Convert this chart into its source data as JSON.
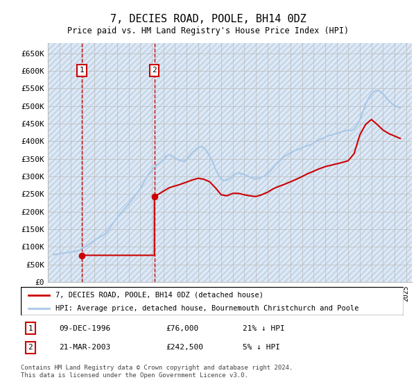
{
  "title": "7, DECIES ROAD, POOLE, BH14 0DZ",
  "subtitle": "Price paid vs. HM Land Registry's House Price Index (HPI)",
  "xmin": 1994.0,
  "xmax": 2025.5,
  "ymin": 0,
  "ymax": 680000,
  "yticks": [
    0,
    50000,
    100000,
    150000,
    200000,
    250000,
    300000,
    350000,
    400000,
    450000,
    500000,
    550000,
    600000,
    650000
  ],
  "ytick_labels": [
    "£0",
    "£50K",
    "£100K",
    "£150K",
    "£200K",
    "£250K",
    "£300K",
    "£350K",
    "£400K",
    "£450K",
    "£500K",
    "£550K",
    "£600K",
    "£650K"
  ],
  "hpi_color": "#a8c8e8",
  "price_color": "#cc0000",
  "marker_color": "#cc0000",
  "dashed_color": "#cc0000",
  "transaction1_x": 1996.94,
  "transaction1_y": 76000,
  "transaction2_x": 2003.22,
  "transaction2_y": 242500,
  "legend_line1": "7, DECIES ROAD, POOLE, BH14 0DZ (detached house)",
  "legend_line2": "HPI: Average price, detached house, Bournemouth Christchurch and Poole",
  "table_row1": [
    "1",
    "09-DEC-1996",
    "£76,000",
    "21% ↓ HPI"
  ],
  "table_row2": [
    "2",
    "21-MAR-2003",
    "£242,500",
    "5% ↓ HPI"
  ],
  "footer": "Contains HM Land Registry data © Crown copyright and database right 2024.\nThis data is licensed under the Open Government Licence v3.0.",
  "hpi_data_x": [
    1994.5,
    1995.0,
    1995.25,
    1995.5,
    1995.75,
    1996.0,
    1996.25,
    1996.5,
    1996.75,
    1997.0,
    1997.25,
    1997.5,
    1997.75,
    1998.0,
    1998.25,
    1998.5,
    1998.75,
    1999.0,
    1999.25,
    1999.5,
    1999.75,
    2000.0,
    2000.25,
    2000.5,
    2000.75,
    2001.0,
    2001.25,
    2001.5,
    2001.75,
    2002.0,
    2002.25,
    2002.5,
    2002.75,
    2003.0,
    2003.25,
    2003.5,
    2003.75,
    2004.0,
    2004.25,
    2004.5,
    2004.75,
    2005.0,
    2005.25,
    2005.5,
    2005.75,
    2006.0,
    2006.25,
    2006.5,
    2006.75,
    2007.0,
    2007.25,
    2007.5,
    2007.75,
    2008.0,
    2008.25,
    2008.5,
    2008.75,
    2009.0,
    2009.25,
    2009.5,
    2009.75,
    2010.0,
    2010.25,
    2010.5,
    2010.75,
    2011.0,
    2011.25,
    2011.5,
    2011.75,
    2012.0,
    2012.25,
    2012.5,
    2012.75,
    2013.0,
    2013.25,
    2013.5,
    2013.75,
    2014.0,
    2014.25,
    2014.5,
    2014.75,
    2015.0,
    2015.25,
    2015.5,
    2015.75,
    2016.0,
    2016.25,
    2016.5,
    2016.75,
    2017.0,
    2017.25,
    2017.5,
    2017.75,
    2018.0,
    2018.25,
    2018.5,
    2018.75,
    2019.0,
    2019.25,
    2019.5,
    2019.75,
    2020.0,
    2020.25,
    2020.5,
    2020.75,
    2021.0,
    2021.25,
    2021.5,
    2021.75,
    2022.0,
    2022.25,
    2022.5,
    2022.75,
    2023.0,
    2023.25,
    2023.5,
    2023.75,
    2024.0,
    2024.25,
    2024.5
  ],
  "hpi_data_y": [
    78000,
    80000,
    82000,
    83000,
    84000,
    85000,
    86000,
    88000,
    91000,
    95000,
    100000,
    106000,
    112000,
    118000,
    123000,
    128000,
    132000,
    138000,
    148000,
    160000,
    172000,
    183000,
    193000,
    203000,
    213000,
    222000,
    232000,
    243000,
    254000,
    265000,
    280000,
    295000,
    308000,
    318000,
    328000,
    335000,
    340000,
    348000,
    358000,
    362000,
    358000,
    352000,
    348000,
    345000,
    343000,
    348000,
    358000,
    368000,
    375000,
    382000,
    385000,
    382000,
    372000,
    358000,
    342000,
    322000,
    305000,
    293000,
    288000,
    290000,
    295000,
    302000,
    308000,
    310000,
    308000,
    305000,
    302000,
    298000,
    295000,
    293000,
    295000,
    298000,
    302000,
    308000,
    315000,
    325000,
    335000,
    342000,
    350000,
    358000,
    362000,
    368000,
    372000,
    375000,
    378000,
    382000,
    385000,
    388000,
    390000,
    395000,
    400000,
    405000,
    408000,
    412000,
    415000,
    418000,
    420000,
    422000,
    425000,
    428000,
    430000,
    432000,
    430000,
    435000,
    445000,
    462000,
    482000,
    505000,
    522000,
    535000,
    542000,
    545000,
    542000,
    535000,
    525000,
    515000,
    508000,
    502000,
    498000,
    495000
  ],
  "price_line_x": [
    1994.5,
    1996.94,
    1996.94,
    2003.22,
    2003.22,
    2004.5,
    2005.5,
    2006.5,
    2007.0,
    2007.5,
    2008.0,
    2008.5,
    2009.0,
    2009.5,
    2010.0,
    2010.5,
    2011.0,
    2011.5,
    2012.0,
    2012.5,
    2013.0,
    2013.5,
    2014.0,
    2014.5,
    2015.0,
    2015.5,
    2016.0,
    2016.5,
    2017.0,
    2017.5,
    2018.0,
    2018.5,
    2019.0,
    2019.5,
    2020.0,
    2020.5,
    2021.0,
    2021.5,
    2022.0,
    2022.5,
    2023.0,
    2023.5,
    2024.0,
    2024.5
  ],
  "price_line_y": [
    null,
    null,
    76000,
    76000,
    242500,
    268000,
    278000,
    290000,
    295000,
    292000,
    285000,
    268000,
    248000,
    245000,
    252000,
    252000,
    248000,
    245000,
    243000,
    248000,
    255000,
    265000,
    272000,
    278000,
    285000,
    292000,
    300000,
    308000,
    315000,
    322000,
    328000,
    332000,
    336000,
    340000,
    345000,
    365000,
    418000,
    448000,
    462000,
    448000,
    432000,
    422000,
    415000,
    408000
  ]
}
